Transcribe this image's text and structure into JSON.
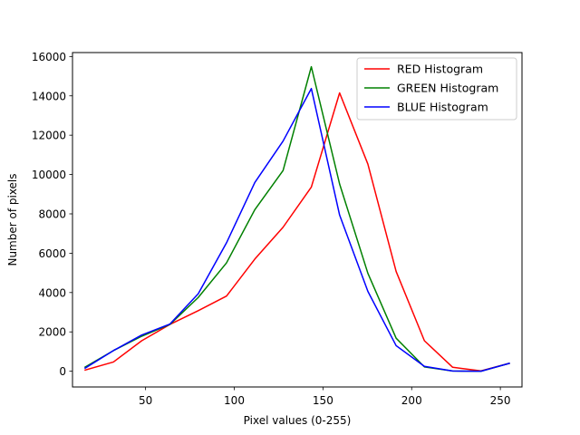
{
  "chart_data": {
    "type": "line",
    "title": "",
    "xlabel": "Pixel values (0-255)",
    "ylabel": "Number of pixels",
    "xlim": [
      8.8,
      262.2
    ],
    "ylim": [
      -800,
      16200
    ],
    "xticks": [
      50,
      100,
      150,
      200,
      250
    ],
    "yticks": [
      0,
      2000,
      4000,
      6000,
      8000,
      10000,
      12000,
      14000,
      16000
    ],
    "grid": false,
    "legend_position": "top-right",
    "x": [
      15.9375,
      31.875,
      47.8125,
      63.75,
      79.6875,
      95.625,
      111.5625,
      127.5,
      143.4375,
      159.375,
      175.3125,
      191.25,
      207.1875,
      223.125,
      239.0625,
      255
    ],
    "series": [
      {
        "name": "RED Histogram",
        "color": "#ff0000",
        "values": [
          60,
          470,
          1550,
          2380,
          3080,
          3820,
          5700,
          7320,
          9360,
          14150,
          10530,
          5070,
          1550,
          200,
          20,
          400
        ]
      },
      {
        "name": "GREEN Histogram",
        "color": "#008000",
        "values": [
          210,
          1050,
          1780,
          2380,
          3750,
          5510,
          8210,
          10200,
          15480,
          9520,
          4980,
          1680,
          220,
          10,
          0,
          400
        ]
      },
      {
        "name": "BLUE Histogram",
        "color": "#0000ff",
        "values": [
          160,
          1050,
          1840,
          2400,
          3940,
          6530,
          9590,
          11700,
          14370,
          7940,
          4060,
          1300,
          250,
          10,
          0,
          400
        ]
      }
    ]
  }
}
